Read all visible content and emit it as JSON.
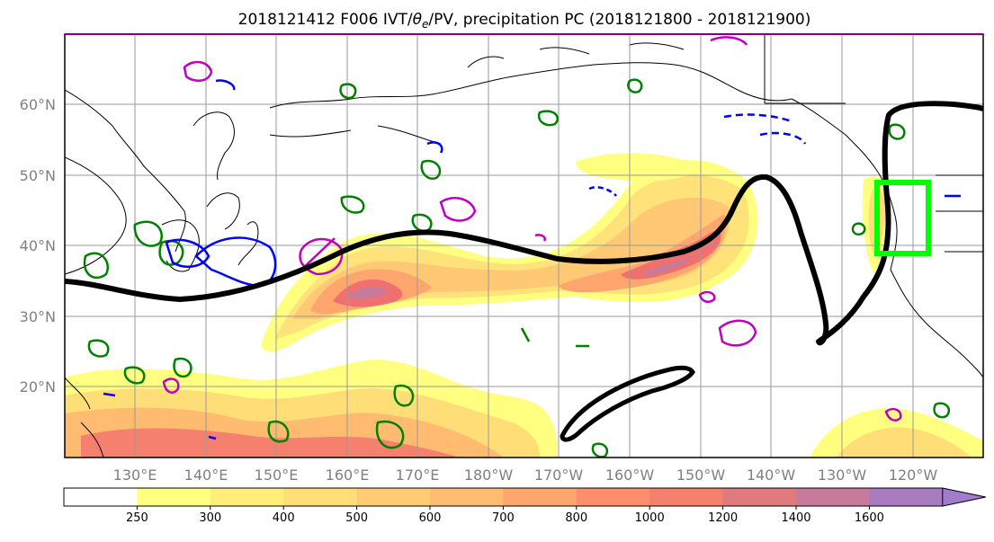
{
  "figure": {
    "title_prefix": "2018121412 F006 IVT/",
    "title_theta": "θ",
    "title_sub": "e",
    "title_suffix": "/PV, precipitation PC (2018121800 - 2018121900)"
  },
  "map": {
    "lat_labels": [
      "60°N",
      "50°N",
      "40°N",
      "30°N",
      "20°N"
    ],
    "lon_labels": [
      "130°E",
      "140°E",
      "150°E",
      "160°E",
      "170°E",
      "180°W",
      "170°W",
      "160°W",
      "150°W",
      "140°W",
      "130°W",
      "120°W"
    ],
    "box_color": "#00ff00",
    "contour_colors": {
      "positive_pc": "#000000",
      "pv": "#007f00",
      "theta_e_pos": "#bf00bf",
      "theta_e_neg": "#0000ff"
    }
  },
  "colorbar": {
    "ticks": [
      "250",
      "300",
      "400",
      "500",
      "600",
      "700",
      "800",
      "1000",
      "1200",
      "1400",
      "1600"
    ],
    "colors": [
      "#ffff80",
      "#ffee7a",
      "#ffdd77",
      "#ffcc73",
      "#ffbb70",
      "#ffa56e",
      "#ff8f6c",
      "#f5806e",
      "#e07a7e",
      "#c77a9a",
      "#a97cbf",
      "#a27cca"
    ],
    "extend": "max"
  }
}
